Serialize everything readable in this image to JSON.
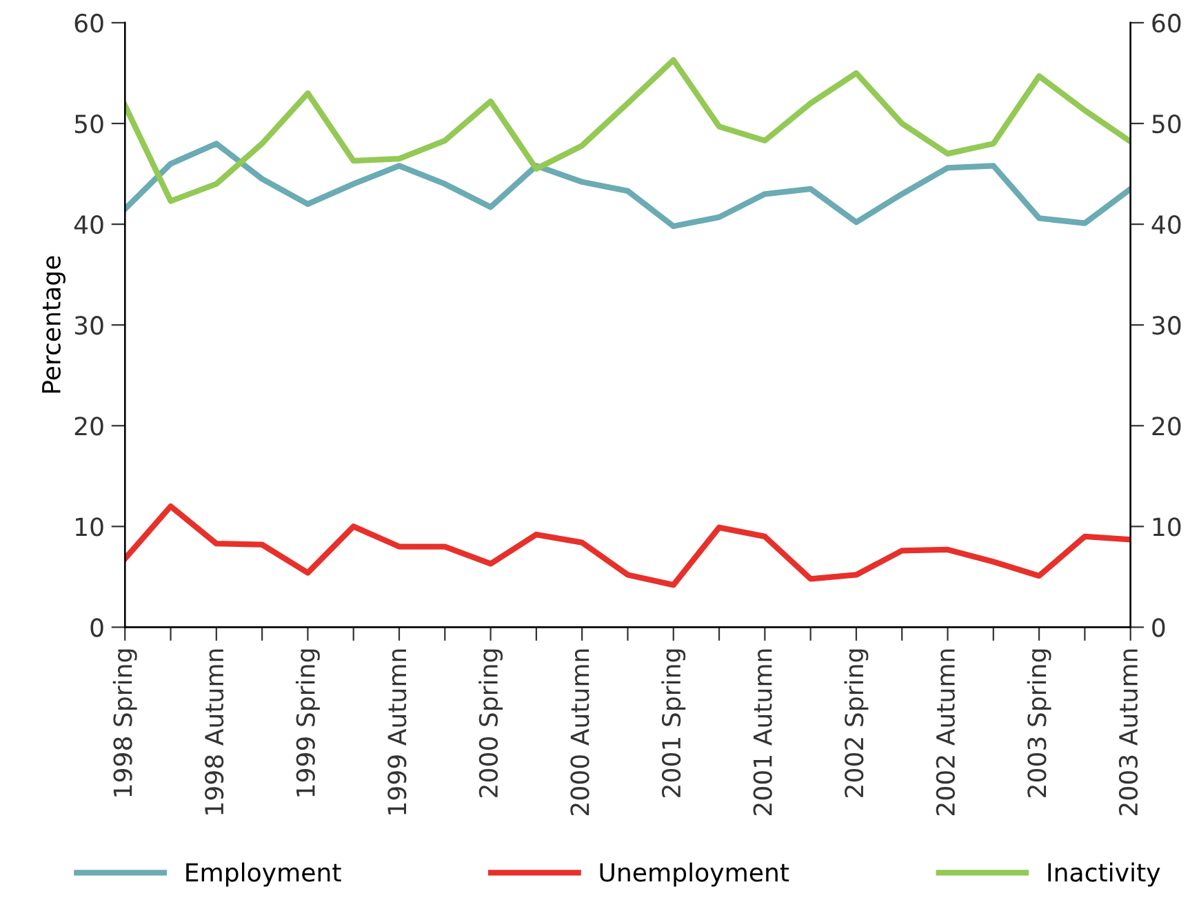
{
  "chart_data": {
    "type": "line",
    "ylabel": "Percentage",
    "categories": [
      "1998 Spring",
      null,
      "1998 Autumn",
      null,
      "1999 Spring",
      null,
      "1999 Autumn",
      null,
      "2000 Spring",
      null,
      "2000 Autumn",
      null,
      "2001 Spring",
      null,
      "2001 Autumn",
      null,
      "2002 Spring",
      null,
      "2002 Autumn",
      null,
      "2003 Spring",
      null,
      "2003 Autumn"
    ],
    "series": [
      {
        "name": "Employment",
        "color": "#6aabb4",
        "values": [
          41.5,
          46,
          48,
          44.5,
          42,
          44,
          45.8,
          44,
          41.7,
          45.8,
          44.2,
          43.3,
          39.8,
          40.7,
          43,
          43.5,
          40.2,
          43,
          45.6,
          45.8,
          40.6,
          40.1,
          43.5
        ]
      },
      {
        "name": "Unemployment",
        "color": "#e8302a",
        "values": [
          6.8,
          12,
          8.3,
          8.2,
          5.4,
          10,
          8,
          8,
          6.3,
          9.2,
          8.4,
          5.2,
          4.2,
          9.9,
          9,
          4.8,
          5.2,
          7.6,
          7.7,
          6.5,
          5.1,
          9,
          8.7
        ]
      },
      {
        "name": "Inactivity",
        "color": "#93c954",
        "values": [
          51.8,
          42.3,
          44,
          48,
          53,
          46.3,
          46.5,
          48.3,
          52.2,
          45.5,
          47.8,
          52,
          56.3,
          49.7,
          48.3,
          52,
          55,
          50,
          47,
          48,
          54.7,
          51.3,
          48.2
        ]
      }
    ],
    "ylim": [
      0,
      60
    ],
    "yticks": [
      0,
      10,
      20,
      30,
      40,
      50,
      60
    ],
    "y2lim": [
      0,
      60
    ],
    "y2ticks": [
      0,
      10,
      20,
      30,
      40,
      50,
      60
    ],
    "grid": false,
    "legend": "bottom",
    "marker": "none",
    "line_style": "solid"
  }
}
